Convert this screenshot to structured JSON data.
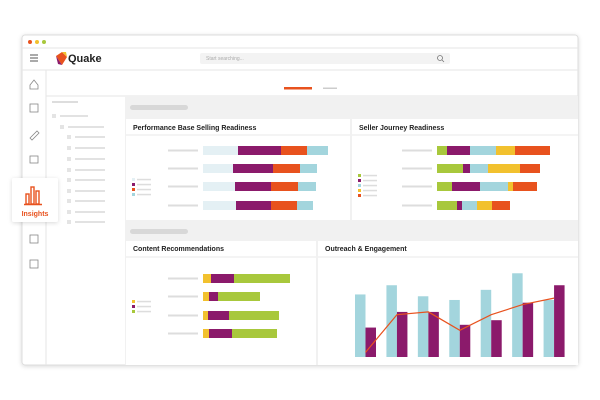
{
  "header": {
    "logo": "Quake",
    "search_placeholder": "Start searching..."
  },
  "sidebar": {
    "active_item": "Insights"
  },
  "chart_data": [
    {
      "type": "stacked_hbar",
      "title": "Performance Base Selling Readiness",
      "xlim": [
        0,
        130
      ],
      "series": [
        {
          "color": "#e4f0f4",
          "values": [
            35,
            30,
            32,
            33
          ]
        },
        {
          "color": "#8b1a6b",
          "values": [
            43,
            40,
            36,
            35
          ]
        },
        {
          "color": "#e8521e",
          "values": [
            26,
            27,
            27,
            26
          ]
        },
        {
          "color": "#a3d5dd",
          "values": [
            21,
            17,
            18,
            16
          ]
        }
      ]
    },
    {
      "type": "stacked_hbar",
      "title": "Seller Journey Readiness",
      "xlim": [
        0,
        130
      ],
      "series": [
        {
          "color": "#a8c83c",
          "values": [
            10,
            26,
            15,
            20
          ]
        },
        {
          "color": "#8b1a6b",
          "values": [
            23,
            7,
            28,
            5
          ]
        },
        {
          "color": "#a3d5dd",
          "values": [
            26,
            18,
            28,
            15
          ]
        },
        {
          "color": "#f2c12e",
          "values": [
            19,
            32,
            5,
            15
          ]
        },
        {
          "color": "#e8521e",
          "values": [
            35,
            20,
            24,
            18
          ]
        }
      ]
    },
    {
      "type": "stacked_hbar",
      "title": "Content Recommendations",
      "xlim": [
        0,
        110
      ],
      "series": [
        {
          "color": "#f2c12e",
          "values": [
            8,
            6,
            5,
            6
          ]
        },
        {
          "color": "#8b1a6b",
          "values": [
            23,
            9,
            21,
            23
          ]
        },
        {
          "color": "#a8c83c",
          "values": [
            56,
            42,
            50,
            45
          ]
        }
      ]
    },
    {
      "type": "combo",
      "title": "Outreach & Engagement",
      "ylim": [
        0,
        100
      ],
      "series": [
        {
          "type": "bar",
          "color": "#a3d5dd",
          "values": [
            68,
            78,
            66,
            62,
            73,
            91,
            62
          ]
        },
        {
          "type": "bar",
          "color": "#8b1a6b",
          "values": [
            32,
            49,
            49,
            35,
            40,
            59,
            78
          ]
        },
        {
          "type": "line",
          "color": "#e8521e",
          "values": [
            5,
            46,
            49,
            29,
            46,
            57,
            64
          ]
        }
      ]
    }
  ]
}
